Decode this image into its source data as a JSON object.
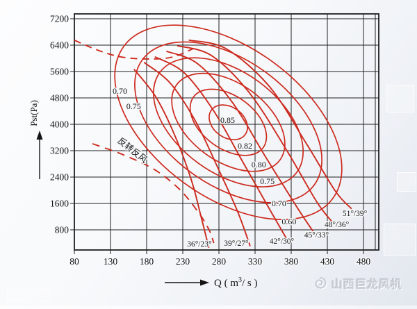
{
  "page": {
    "watermark": {
      "icon": "dragon-logo",
      "text": "山西巨龙风机"
    }
  },
  "chart_data": {
    "type": "line",
    "title": "",
    "xlabel": "Q ( m³/ s )",
    "xlabel_parts": {
      "prefix": "Q ( m",
      "sup": "3",
      "suffix": "/ s )"
    },
    "ylabel": "Pst(Pa)",
    "x_ticks": [
      80,
      130,
      180,
      230,
      280,
      330,
      380,
      430,
      480
    ],
    "y_ticks": [
      800,
      1600,
      2400,
      3200,
      4000,
      4800,
      5600,
      6400,
      7200
    ],
    "xlim": [
      80,
      501
    ],
    "ylim": [
      190,
      7350
    ],
    "grid": true,
    "curve_color": "#cd2a1e",
    "grid_color": "#1f1f1f",
    "fan_curves": [
      {
        "label": "36°/23°",
        "label_at": [
          253,
          380
        ],
        "points": [
          [
            163,
            5660
          ],
          [
            193,
            4820
          ],
          [
            219,
            3660
          ],
          [
            242,
            2300
          ],
          [
            256,
            1140
          ],
          [
            266,
            270
          ]
        ]
      },
      {
        "label": "39°/27°",
        "label_at": [
          304,
          400
        ],
        "points": [
          [
            177,
            5870
          ],
          [
            213,
            5240
          ],
          [
            248,
            4080
          ],
          [
            280,
            2610
          ],
          [
            306,
            1350
          ],
          [
            323,
            320
          ]
        ]
      },
      {
        "label": "42°/30°",
        "label_at": [
          367,
          460
        ],
        "points": [
          [
            192,
            6040
          ],
          [
            232,
            5560
          ],
          [
            273,
            4400
          ],
          [
            314,
            2820
          ],
          [
            352,
            1350
          ],
          [
            376,
            440
          ]
        ]
      },
      {
        "label": "45°/33°",
        "label_at": [
          415,
          650
        ],
        "points": [
          [
            208,
            6210
          ],
          [
            251,
            5830
          ],
          [
            299,
            4650
          ],
          [
            344,
            3030
          ],
          [
            389,
            1450
          ],
          [
            412,
            700
          ]
        ]
      },
      {
        "label": "48°/36°",
        "label_at": [
          443,
          970
        ],
        "points": [
          [
            223,
            6380
          ],
          [
            270,
            6080
          ],
          [
            323,
            4930
          ],
          [
            373,
            3240
          ],
          [
            415,
            1660
          ],
          [
            437,
            1030
          ]
        ]
      },
      {
        "label": "51°/39°",
        "label_at": [
          468,
          1310
        ],
        "points": [
          [
            239,
            6550
          ],
          [
            290,
            6290
          ],
          [
            350,
            5140
          ],
          [
            400,
            3450
          ],
          [
            441,
            1980
          ],
          [
            463,
            1450
          ]
        ]
      }
    ],
    "efficiency_contours": {
      "center": [
        293,
        4060
      ],
      "tilt_deg": 36,
      "rings": [
        {
          "label": "0.85",
          "a": 30,
          "b": 22
        },
        {
          "label": "0.82",
          "a": 62,
          "b": 38
        },
        {
          "label": "0.80",
          "a": 92,
          "b": 56
        },
        {
          "label": "0.75",
          "a": 122,
          "b": 73
        },
        {
          "label": "0.70",
          "a": 153,
          "b": 90
        },
        {
          "label": "0.60",
          "a": 186,
          "b": 108
        }
      ],
      "labels": [
        {
          "text": "0.85",
          "at": [
            292,
            4130
          ]
        },
        {
          "text": "0.82",
          "at": [
            316,
            3350
          ]
        },
        {
          "text": "0.80",
          "at": [
            335,
            2780
          ]
        },
        {
          "text": "0.75",
          "at": [
            347,
            2270
          ]
        },
        {
          "text": "0.70",
          "at": [
            363,
            1600
          ]
        },
        {
          "text": "0.60",
          "at": [
            377,
            1050
          ]
        },
        {
          "text": "0.70",
          "at": [
            143,
            5010
          ]
        },
        {
          "text": "0.75",
          "at": [
            162,
            4550
          ]
        }
      ]
    },
    "surge_line": {
      "style": "dashed",
      "points": [
        [
          80,
          6550
        ],
        [
          112,
          6250
        ],
        [
          145,
          6040
        ],
        [
          184,
          5980
        ],
        [
          216,
          6040
        ],
        [
          244,
          6290
        ]
      ]
    },
    "reverse_curve": {
      "style": "dashed",
      "label": "反转反风",
      "label_at": [
        139,
        3470
      ],
      "label_angle_deg": 38,
      "points": [
        [
          105,
          3410
        ],
        [
          145,
          3100
        ],
        [
          189,
          2650
        ],
        [
          225,
          2040
        ],
        [
          251,
          1350
        ],
        [
          266,
          820
        ],
        [
          273,
          400
        ]
      ]
    }
  }
}
